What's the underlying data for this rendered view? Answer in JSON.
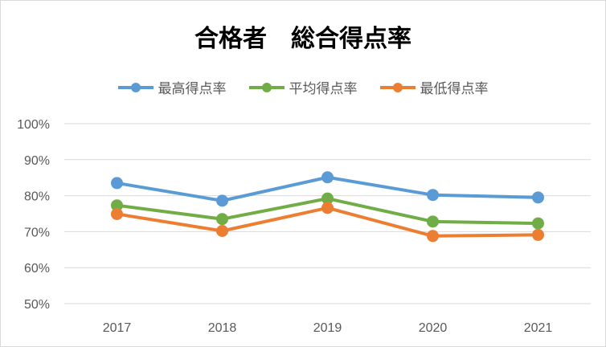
{
  "chart_data": {
    "type": "line",
    "title": "合格者　総合得点率",
    "xlabel": "",
    "ylabel": "",
    "categories": [
      "2017",
      "2018",
      "2019",
      "2020",
      "2021"
    ],
    "ylim": [
      0.5,
      1.0
    ],
    "yticks": [
      "50%",
      "60%",
      "70%",
      "80%",
      "90%",
      "100%"
    ],
    "grid": true,
    "legend_position": "top",
    "series": [
      {
        "name": "最高得点率",
        "color": "#5b9bd5",
        "values": [
          0.835,
          0.786,
          0.851,
          0.802,
          0.795
        ]
      },
      {
        "name": "平均得点率",
        "color": "#70ad47",
        "values": [
          0.773,
          0.735,
          0.792,
          0.728,
          0.723
        ]
      },
      {
        "name": "最低得点率",
        "color": "#ed7d31",
        "values": [
          0.749,
          0.702,
          0.766,
          0.688,
          0.691
        ]
      }
    ]
  }
}
